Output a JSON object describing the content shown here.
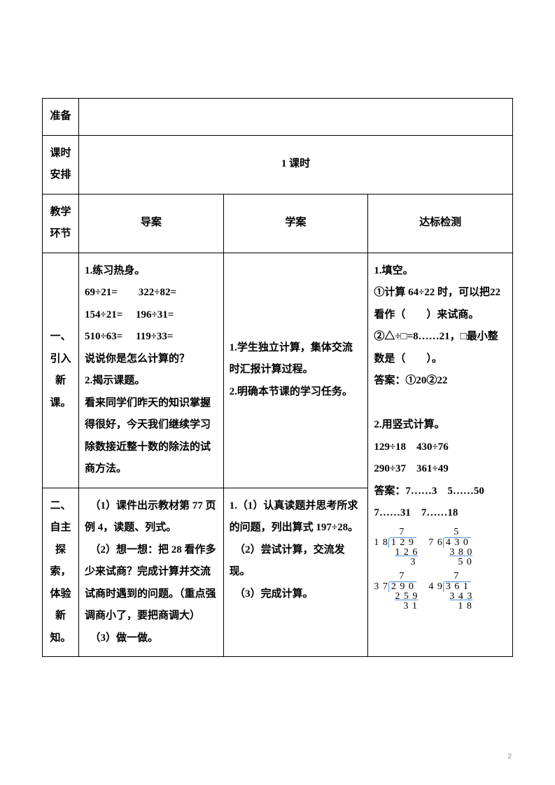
{
  "rows": {
    "prep": {
      "label": "准备",
      "content": ""
    },
    "period": {
      "label": "课时安排",
      "content": "1 课时"
    },
    "env": {
      "label": "教学环节",
      "col1": "导案",
      "col2": "学案",
      "col3": "达标检测"
    },
    "sec1": {
      "label": "一、引入新课。",
      "guide": "1.练习热身。\n69÷21=　　322÷82=\n154÷21=　 196÷31=\n510÷63=　 119÷33=\n说说你是怎么计算的？\n2.揭示课题。\n看来同学们昨天的知识掌握得很好，今天我们继续学习除数接近整十数的除法的试商方法。",
      "student": "1.学生独立计算，集体交流时汇报计算过程。\n2.明确本节课的学习任务。",
      "check_p1": "1.填空。\n①计算 64÷22 时，可以把22 看作（　　）来试商。\n②△÷□=8……21，□最小整数是（　　）。\n答案：①20②22\n\n2.用竖式计算。\n129÷18　430÷76\n290÷37　361÷49\n答案：7……3　5……50\n7……31　7……18"
    },
    "sec2": {
      "label": "二、自主探索，体验新知。",
      "guide": "　（1）课件出示教材第 77 页例 4，读题、列式。\n　（2）想一想：把 28 看作多少来试商？完成计算并交流试商时遇到的问题。（重点强调商小了，要把商调大）\n　（3）做一做。",
      "student": "1.（1）认真读题并思考所求的问题，列出算式 197÷28。\n　（2）尝试计算，交流发现。\n　（3）完成计算。"
    }
  },
  "divisions": [
    {
      "divisor": "1 8",
      "dividend": "1 2 9",
      "q": "7",
      "sub": "1 2 6",
      "rem": "3",
      "remPad": 22
    },
    {
      "divisor": "7 6",
      "dividend": "4 3 0",
      "q": "5",
      "sub": "3 8 0",
      "rem": "5 0",
      "remPad": 12
    },
    {
      "divisor": "3 7",
      "dividend": "2 9 0",
      "q": "7",
      "sub": "2 5 9",
      "rem": "3 1",
      "remPad": 12
    },
    {
      "divisor": "4 9",
      "dividend": "3 6 1",
      "q": "7",
      "sub": "3 4 3",
      "rem": "1 8",
      "remPad": 12
    }
  ],
  "pageNum": "2"
}
